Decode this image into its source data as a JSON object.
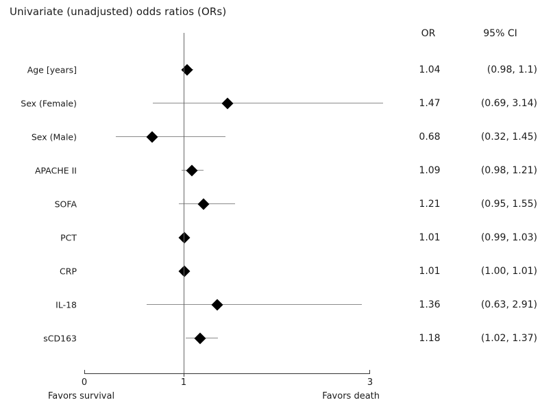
{
  "title": "Univariate (unadjusted) odds ratios (ORs)",
  "columns": {
    "or": "OR",
    "ci": "95% CI"
  },
  "axis": {
    "tick_values": [
      0,
      1,
      3
    ],
    "tick_labels": [
      "0",
      "1",
      "3"
    ],
    "refline": 1,
    "xlim": [
      0,
      3
    ],
    "left_label": "Favors survival",
    "right_label": "Favors death"
  },
  "colors": {
    "marker": "#000000",
    "ci_line": "#8a8a8a",
    "axis": "#333333",
    "refline": "#666666",
    "text": "#1a1a1a",
    "background": "#ffffff"
  },
  "chart_data": {
    "type": "scatter",
    "subtype": "forest-plot",
    "title": "Univariate (unadjusted) odds ratios (ORs)",
    "xlim": [
      0,
      3
    ],
    "xticks": [
      0,
      1,
      3
    ],
    "refline_x": 1,
    "grid": false,
    "legend": "none",
    "xlabel_left": "Favors survival",
    "xlabel_right": "Favors death",
    "rows": [
      {
        "label": "Age [years]",
        "or": 1.04,
        "ci_low": 0.98,
        "ci_high": 1.1,
        "or_text": "1.04",
        "ci_text": "(0.98, 1.1)"
      },
      {
        "label": "Sex (Female)",
        "or": 1.47,
        "ci_low": 0.69,
        "ci_high": 3.14,
        "or_text": "1.47",
        "ci_text": "(0.69, 3.14)"
      },
      {
        "label": "Sex (Male)",
        "or": 0.68,
        "ci_low": 0.32,
        "ci_high": 1.45,
        "or_text": "0.68",
        "ci_text": "(0.32, 1.45)"
      },
      {
        "label": "APACHE II",
        "or": 1.09,
        "ci_low": 0.98,
        "ci_high": 1.21,
        "or_text": "1.09",
        "ci_text": "(0.98, 1.21)"
      },
      {
        "label": "SOFA",
        "or": 1.21,
        "ci_low": 0.95,
        "ci_high": 1.55,
        "or_text": "1.21",
        "ci_text": "(0.95, 1.55)"
      },
      {
        "label": "PCT",
        "or": 1.01,
        "ci_low": 0.99,
        "ci_high": 1.03,
        "or_text": "1.01",
        "ci_text": "(0.99, 1.03)"
      },
      {
        "label": "CRP",
        "or": 1.01,
        "ci_low": 1.0,
        "ci_high": 1.01,
        "or_text": "1.01",
        "ci_text": "(1.00, 1.01)"
      },
      {
        "label": "IL-18",
        "or": 1.36,
        "ci_low": 0.63,
        "ci_high": 2.91,
        "or_text": "1.36",
        "ci_text": "(0.63, 2.91)"
      },
      {
        "label": "sCD163",
        "or": 1.18,
        "ci_low": 1.02,
        "ci_high": 1.37,
        "or_text": "1.18",
        "ci_text": "(1.02, 1.37)"
      }
    ]
  }
}
